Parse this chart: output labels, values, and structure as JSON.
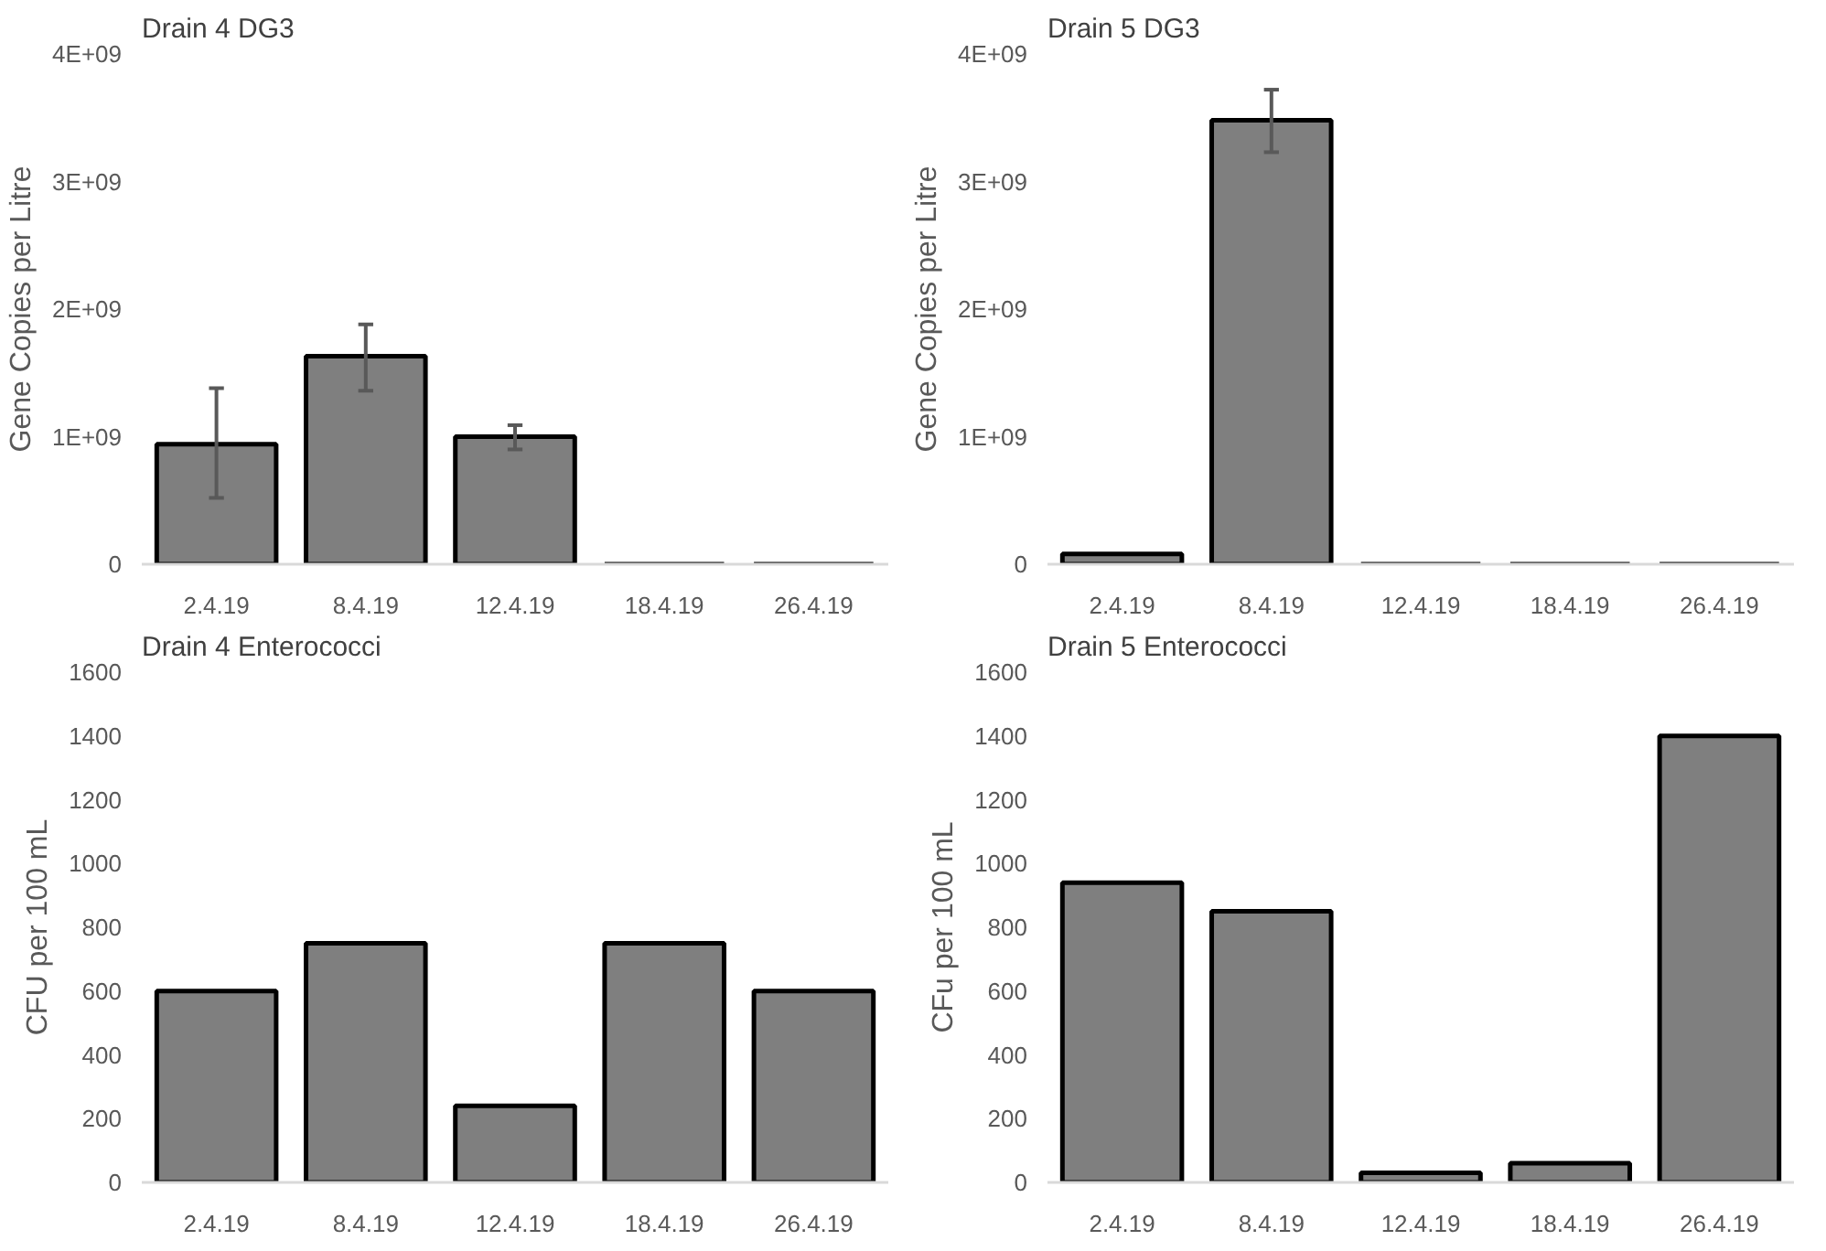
{
  "chart_data": [
    {
      "type": "bar",
      "title": "Drain 4 DG3",
      "ylabel": "Gene Copies per Litre",
      "categories": [
        "2.4.19",
        "8.4.19",
        "12.4.19",
        "18.4.19",
        "26.4.19"
      ],
      "values": [
        940000000,
        1630000000,
        1000000000,
        0,
        0
      ],
      "errors": [
        [
          520000000,
          1380000000
        ],
        [
          1360000000,
          1880000000
        ],
        [
          900000000,
          1090000000
        ],
        null,
        null
      ],
      "color": "#7f7f7f",
      "ylim": [
        0,
        4000000000
      ],
      "yticks": [
        0,
        {
          "value": 1000000000,
          "label": "1E+09"
        },
        {
          "value": 2000000000,
          "label": "2E+09"
        },
        {
          "value": 3000000000,
          "label": "3E+09"
        },
        {
          "value": 4000000000,
          "label": "4E+09"
        }
      ]
    },
    {
      "type": "bar",
      "title": "Drain 5 DG3",
      "ylabel": "Gene Copies per Litre",
      "categories": [
        "2.4.19",
        "8.4.19",
        "12.4.19",
        "18.4.19",
        "26.4.19"
      ],
      "values": [
        80000000,
        3480000000,
        0,
        0,
        0
      ],
      "errors": [
        null,
        [
          3230000000,
          3720000000
        ],
        null,
        null,
        null
      ],
      "color": "#7f7f7f",
      "ylim": [
        0,
        4000000000
      ],
      "yticks": [
        0,
        {
          "value": 1000000000,
          "label": "1E+09"
        },
        {
          "value": 2000000000,
          "label": "2E+09"
        },
        {
          "value": 3000000000,
          "label": "3E+09"
        },
        {
          "value": 4000000000,
          "label": "4E+09"
        }
      ]
    },
    {
      "type": "bar",
      "title": "Drain 4 Enterococci",
      "ylabel": "CFU per 100 mL",
      "categories": [
        "2.4.19",
        "8.4.19",
        "12.4.19",
        "18.4.19",
        "26.4.19"
      ],
      "values": [
        600,
        750,
        240,
        750,
        600
      ],
      "color": "#7f7f7f",
      "ylim": [
        0,
        1600
      ],
      "yticks": [
        0,
        200,
        400,
        600,
        800,
        1000,
        1200,
        1400,
        1600
      ]
    },
    {
      "type": "bar",
      "title": "Drain 5 Enterococci",
      "ylabel": "CFu per 100 mL",
      "categories": [
        "2.4.19",
        "8.4.19",
        "12.4.19",
        "18.4.19",
        "26.4.19"
      ],
      "values": [
        940,
        850,
        30,
        60,
        1400
      ],
      "color": "#7f7f7f",
      "ylim": [
        0,
        1600
      ],
      "yticks": [
        0,
        200,
        400,
        600,
        800,
        1000,
        1200,
        1400,
        1600
      ]
    }
  ]
}
